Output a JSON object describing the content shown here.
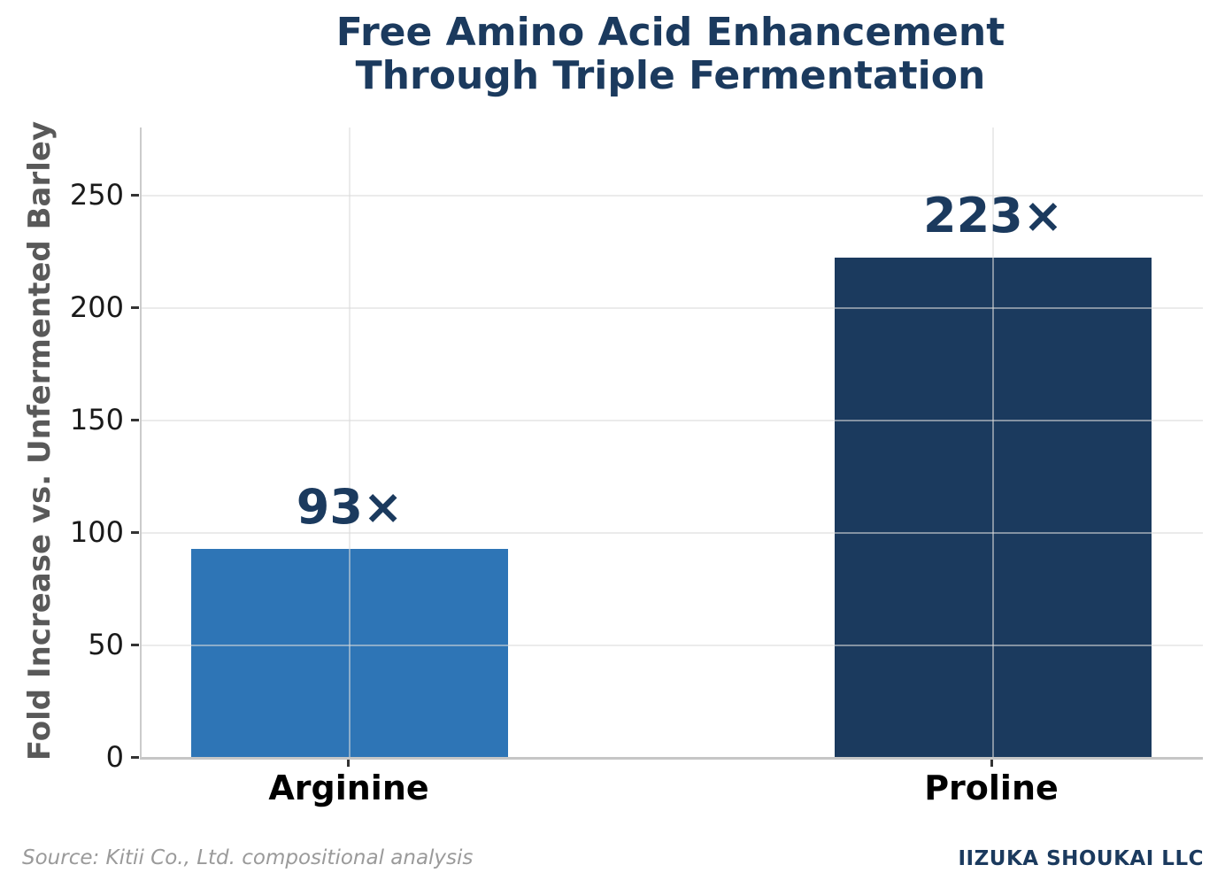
{
  "title": {
    "line1": "Free Amino Acid Enhancement",
    "line2": "Through Triple Fermentation"
  },
  "y_axis": {
    "label": "Fold Increase vs. Unfermented Barley",
    "ticks": [
      "0",
      "50",
      "100",
      "150",
      "200",
      "250"
    ]
  },
  "bars": [
    {
      "category": "Arginine",
      "value": 93,
      "label": "93×",
      "color": "#2e75b6"
    },
    {
      "category": "Proline",
      "value": 223,
      "label": "223×",
      "color": "#1b3a5e"
    }
  ],
  "footer": {
    "source": "Source: Kitii Co., Ltd. compositional analysis",
    "company": "IIZUKA SHOUKAI LLC"
  },
  "colors": {
    "accent_navy": "#1b3a5e",
    "bar_blue": "#2e75b6",
    "bar_navy": "#1b3a5e",
    "axis_label_gray": "#595959",
    "source_gray": "#9a9a9a",
    "gridline": "#ebebeb"
  },
  "chart_data": {
    "type": "bar",
    "title": "Free Amino Acid Enhancement Through Triple Fermentation",
    "categories": [
      "Arginine",
      "Proline"
    ],
    "values": [
      93,
      223
    ],
    "data_labels": [
      "93×",
      "223×"
    ],
    "bar_colors": [
      "#2e75b6",
      "#1b3a5e"
    ],
    "xlabel": "",
    "ylabel": "Fold Increase vs. Unfermented Barley",
    "ylim": [
      0,
      281
    ],
    "yticks": [
      0,
      50,
      100,
      150,
      200,
      250
    ],
    "grid": true,
    "legend": false,
    "source": "Source: Kitii Co., Ltd. compositional analysis",
    "branding": "IIZUKA SHOUKAI LLC"
  }
}
